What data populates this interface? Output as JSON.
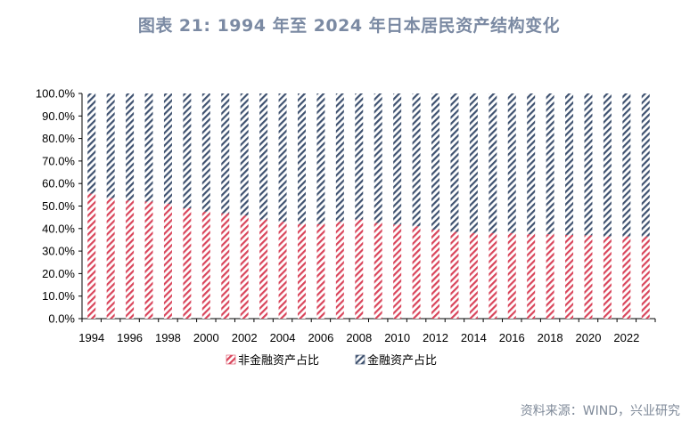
{
  "title": "图表 21: 1994 年至 2024 年日本居民资产结构变化",
  "source": "资料来源：WIND，兴业研究",
  "colors": {
    "non_financial": "#d9455b",
    "financial": "#3f5270",
    "title": "#7b8aa3",
    "source": "#7f8a99"
  },
  "chart_data": {
    "type": "bar",
    "stacked": true,
    "title": "图表 21: 1994 年至 2024 年日本居民资产结构变化",
    "ylim": [
      0,
      100
    ],
    "y_ticks": [
      "0.0%",
      "10.0%",
      "20.0%",
      "30.0%",
      "40.0%",
      "50.0%",
      "60.0%",
      "70.0%",
      "80.0%",
      "90.0%",
      "100.0%"
    ],
    "x_tick_labels": [
      "1994",
      "1996",
      "1998",
      "2000",
      "2002",
      "2004",
      "2006",
      "2008",
      "2010",
      "2012",
      "2014",
      "2016",
      "2018",
      "2020",
      "2022"
    ],
    "categories": [
      "1994",
      "1995",
      "1996",
      "1997",
      "1998",
      "1999",
      "2000",
      "2001",
      "2002",
      "2003",
      "2004",
      "2005",
      "2006",
      "2007",
      "2008",
      "2009",
      "2010",
      "2011",
      "2012",
      "2013",
      "2014",
      "2015",
      "2016",
      "2017",
      "2018",
      "2019",
      "2020",
      "2021",
      "2022",
      "2023"
    ],
    "series": [
      {
        "name": "非金融资产占比",
        "values": [
          55.5,
          53.5,
          52.5,
          52.0,
          51.0,
          49.0,
          47.5,
          46.8,
          45.8,
          44.0,
          43.0,
          42.0,
          42.0,
          43.0,
          44.0,
          42.5,
          41.8,
          41.0,
          39.5,
          38.5,
          38.0,
          38.0,
          38.0,
          37.5,
          37.5,
          37.2,
          37.0,
          36.5,
          36.5,
          36.5
        ]
      },
      {
        "name": "金融资产占比",
        "values": [
          44.5,
          46.5,
          47.5,
          48.0,
          49.0,
          51.0,
          52.5,
          53.2,
          54.2,
          56.0,
          57.0,
          58.0,
          58.0,
          57.0,
          56.0,
          57.5,
          58.2,
          59.0,
          60.5,
          61.5,
          62.0,
          62.0,
          62.0,
          62.5,
          62.5,
          62.8,
          63.0,
          63.5,
          63.5,
          63.5
        ]
      }
    ],
    "legend_position": "bottom-left",
    "grid": false
  }
}
